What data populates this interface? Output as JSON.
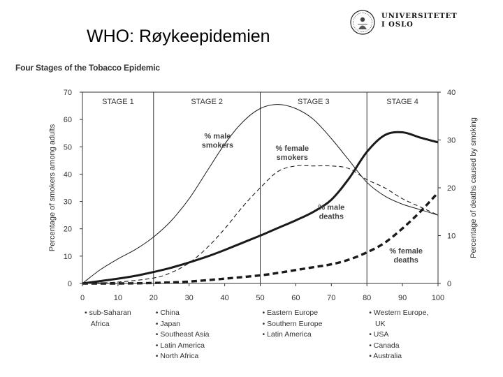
{
  "slide": {
    "title": "WHO: Røykeepidemien",
    "logo": {
      "line1": "UNIVERSITETET",
      "line2": "I OSLO"
    }
  },
  "chart_data": {
    "type": "line",
    "title": "Four Stages of the Tobacco Epidemic",
    "xlabel": "",
    "ylabel_left": "Percentage of smokers among adults",
    "ylabel_right": "Percentage of deaths caused by smoking",
    "xlim": [
      0,
      100
    ],
    "ylim_left": [
      0,
      70
    ],
    "ylim_right": [
      0,
      40
    ],
    "x_ticks": [
      "0",
      "10",
      "20",
      "30",
      "40",
      "50",
      "60",
      "70",
      "80",
      "90",
      "100"
    ],
    "y_ticks_left": [
      "0",
      "10",
      "20",
      "30",
      "40",
      "50",
      "60",
      "70"
    ],
    "y_ticks_right": [
      "0",
      "10",
      "20",
      "30",
      "40"
    ],
    "grid": false,
    "stages": [
      {
        "label": "STAGE 1",
        "x_start": 0,
        "x_end": 20
      },
      {
        "label": "STAGE 2",
        "x_start": 20,
        "x_end": 50
      },
      {
        "label": "STAGE 3",
        "x_start": 50,
        "x_end": 80
      },
      {
        "label": "STAGE 4",
        "x_start": 80,
        "x_end": 100
      }
    ],
    "series": [
      {
        "name": "% male smokers",
        "axis": "left",
        "style": "thin-solid",
        "x": [
          0,
          5,
          10,
          15,
          20,
          25,
          30,
          35,
          40,
          45,
          50,
          55,
          60,
          65,
          70,
          75,
          80,
          85,
          90,
          95,
          100
        ],
        "y": [
          0,
          5,
          9,
          12.5,
          17,
          23,
          31,
          41,
          51,
          59,
          64,
          65.5,
          64,
          60,
          53,
          45,
          37,
          32,
          29,
          27,
          25
        ]
      },
      {
        "name": "% female smokers",
        "axis": "left",
        "style": "thin-dashed",
        "x": [
          0,
          10,
          20,
          25,
          30,
          35,
          40,
          45,
          50,
          55,
          60,
          65,
          70,
          75,
          80,
          85,
          90,
          95,
          100
        ],
        "y": [
          0,
          0.5,
          2,
          4,
          7.5,
          13,
          20,
          28,
          35,
          41,
          43,
          43,
          43,
          42,
          38,
          35,
          31,
          28,
          25
        ]
      },
      {
        "name": "% male deaths",
        "axis": "right",
        "style": "thick-solid",
        "x": [
          0,
          5,
          10,
          15,
          20,
          25,
          30,
          35,
          40,
          45,
          50,
          55,
          60,
          65,
          70,
          75,
          80,
          85,
          90,
          95,
          100
        ],
        "y": [
          0,
          0.5,
          1,
          1.6,
          2.4,
          3.3,
          4.4,
          5.6,
          7,
          8.5,
          10,
          11.6,
          13.2,
          15,
          17.5,
          22,
          27.5,
          31,
          31.6,
          30.5,
          29.5
        ]
      },
      {
        "name": "% female deaths",
        "axis": "right",
        "style": "thick-dashed",
        "x": [
          0,
          10,
          20,
          30,
          40,
          50,
          55,
          60,
          65,
          70,
          75,
          80,
          85,
          90,
          95,
          100
        ],
        "y": [
          0,
          0,
          0.1,
          0.4,
          1,
          1.7,
          2.2,
          2.8,
          3.4,
          4,
          5,
          6.5,
          8.5,
          11.5,
          15,
          19
        ]
      }
    ],
    "annotations": [
      {
        "series": "% male smokers",
        "lines": [
          "% male",
          "smokers"
        ],
        "x": 38,
        "y": 53
      },
      {
        "series": "% female smokers",
        "lines": [
          "% female",
          "smokers"
        ],
        "x": 59,
        "y": 48.5
      },
      {
        "series": "% male deaths",
        "lines": [
          "% male",
          "deaths"
        ],
        "x": 70,
        "y": 27
      },
      {
        "series": "% female deaths",
        "lines": [
          "% female",
          "deaths"
        ],
        "x": 91,
        "y": 11
      }
    ],
    "regions": [
      {
        "stage": 1,
        "items": [
          "sub-Saharan",
          "Africa"
        ]
      },
      {
        "stage": 2,
        "items": [
          "China",
          "Japan",
          "Southeast Asia",
          "Latin America",
          "North Africa"
        ]
      },
      {
        "stage": 3,
        "items": [
          "Eastern Europe",
          "Southern Europe",
          "Latin America"
        ]
      },
      {
        "stage": 4,
        "items": [
          "Western Europe,",
          "UK",
          "USA",
          "Canada",
          "Australia"
        ]
      }
    ]
  }
}
